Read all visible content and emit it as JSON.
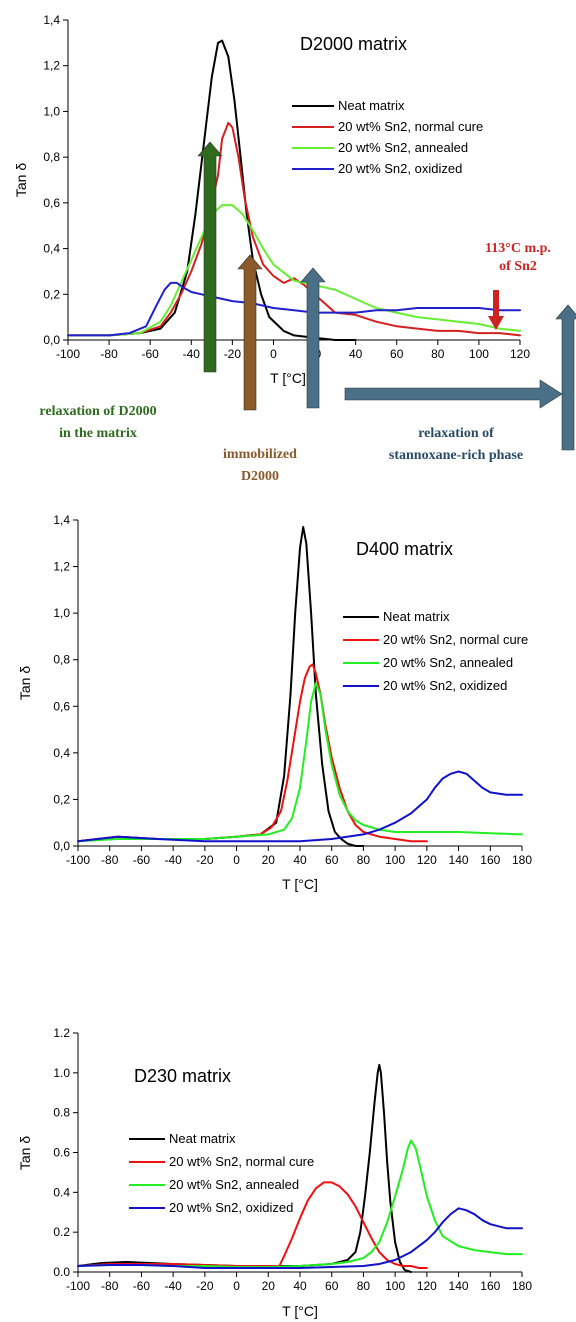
{
  "chart_data": [
    {
      "type": "line",
      "title": "D2000 matrix",
      "xlabel": "T [°C]",
      "ylabel": "Tan δ",
      "xlim": [
        -100,
        120
      ],
      "ylim": [
        0,
        1.4
      ],
      "xticks": [
        -100,
        -80,
        -60,
        -40,
        -20,
        0,
        20,
        40,
        60,
        80,
        100,
        120
      ],
      "yticks": [
        0,
        0.2,
        0.4,
        0.6,
        0.8,
        1.0,
        1.2,
        1.4
      ],
      "tick_labels_x": [
        "-100",
        "-80",
        "-60",
        "-40",
        "-20",
        "0",
        "20",
        "40",
        "60",
        "80",
        "100",
        "120"
      ],
      "tick_labels_y": [
        "0,0",
        "0,2",
        "0,4",
        "0,6",
        "0,8",
        "1,0",
        "1,2",
        "1,4"
      ],
      "legend_position": "center-right",
      "series": [
        {
          "name": "Neat matrix",
          "color": "#000000",
          "x": [
            -100,
            -80,
            -65,
            -55,
            -48,
            -42,
            -38,
            -34,
            -30,
            -27,
            -25,
            -22,
            -19,
            -16,
            -13,
            -10,
            -6,
            -2,
            5,
            10,
            20,
            30,
            40
          ],
          "y": [
            0.02,
            0.02,
            0.03,
            0.05,
            0.12,
            0.3,
            0.55,
            0.85,
            1.15,
            1.3,
            1.31,
            1.24,
            1.05,
            0.8,
            0.55,
            0.35,
            0.2,
            0.1,
            0.04,
            0.02,
            0.01,
            0.0,
            0.0
          ]
        },
        {
          "name": "20 wt% Sn2, normal cure",
          "color": "#d42020",
          "x": [
            -100,
            -80,
            -65,
            -55,
            -50,
            -45,
            -40,
            -35,
            -30,
            -27,
            -25,
            -22,
            -20,
            -17,
            -14,
            -10,
            -5,
            0,
            5,
            10,
            15,
            20,
            25,
            30,
            40,
            50,
            60,
            70,
            80,
            90,
            100,
            110,
            120
          ],
          "y": [
            0.02,
            0.02,
            0.03,
            0.06,
            0.12,
            0.2,
            0.3,
            0.42,
            0.6,
            0.72,
            0.88,
            0.95,
            0.93,
            0.8,
            0.62,
            0.45,
            0.33,
            0.28,
            0.25,
            0.27,
            0.24,
            0.2,
            0.16,
            0.12,
            0.11,
            0.08,
            0.06,
            0.05,
            0.04,
            0.04,
            0.03,
            0.03,
            0.02
          ]
        },
        {
          "name": "20 wt% Sn2, annealed",
          "color": "#66ee33",
          "x": [
            -100,
            -80,
            -65,
            -55,
            -50,
            -45,
            -40,
            -35,
            -30,
            -25,
            -20,
            -15,
            -10,
            -5,
            0,
            10,
            20,
            30,
            40,
            50,
            60,
            70,
            80,
            90,
            100,
            110,
            120
          ],
          "y": [
            0.02,
            0.02,
            0.03,
            0.08,
            0.15,
            0.25,
            0.35,
            0.45,
            0.55,
            0.59,
            0.59,
            0.55,
            0.48,
            0.4,
            0.33,
            0.26,
            0.24,
            0.22,
            0.18,
            0.14,
            0.12,
            0.1,
            0.09,
            0.08,
            0.07,
            0.05,
            0.04
          ]
        },
        {
          "name": "20 wt% Sn2, oxidized",
          "color": "#2020cc",
          "x": [
            -100,
            -80,
            -70,
            -62,
            -57,
            -53,
            -50,
            -47,
            -44,
            -40,
            -35,
            -30,
            -20,
            -10,
            0,
            10,
            20,
            30,
            40,
            50,
            60,
            70,
            80,
            90,
            100,
            110,
            120
          ],
          "y": [
            0.02,
            0.02,
            0.03,
            0.06,
            0.15,
            0.22,
            0.25,
            0.25,
            0.23,
            0.21,
            0.2,
            0.19,
            0.17,
            0.16,
            0.14,
            0.13,
            0.12,
            0.12,
            0.12,
            0.13,
            0.13,
            0.14,
            0.14,
            0.14,
            0.14,
            0.13,
            0.13
          ]
        }
      ],
      "annotations": {
        "melting_point": "113°C m.p.\nof Sn2",
        "relax_d2000": "relaxation of D2000\nin the matrix",
        "immobilized": "immobilized\nD2000",
        "relax_stannoxane": "relaxation of\nstannoxane-rich phase"
      },
      "annotation_colors": {
        "melting_point": "#cc2222",
        "relax_d2000": "#2e6b1f",
        "immobilized": "#8b5a2b",
        "relax_stannoxane": "#2a4a66"
      }
    },
    {
      "type": "line",
      "title": "D400 matrix",
      "xlabel": "T [°C]",
      "ylabel": "Tan δ",
      "xlim": [
        -100,
        180
      ],
      "ylim": [
        0,
        1.4
      ],
      "xticks": [
        -100,
        -80,
        -60,
        -40,
        -20,
        0,
        20,
        40,
        60,
        80,
        100,
        120,
        140,
        160,
        180
      ],
      "yticks": [
        0,
        0.2,
        0.4,
        0.6,
        0.8,
        1.0,
        1.2,
        1.4
      ],
      "tick_labels_x": [
        "-100",
        "-80",
        "-60",
        "-40",
        "-20",
        "0",
        "20",
        "40",
        "60",
        "80",
        "100",
        "120",
        "140",
        "160",
        "180"
      ],
      "tick_labels_y": [
        "0,0",
        "0,2",
        "0,4",
        "0,6",
        "0,8",
        "1,0",
        "1,2",
        "1,4"
      ],
      "legend_position": "center-right",
      "series": [
        {
          "name": "Neat matrix",
          "color": "#000000",
          "x": [
            -100,
            -75,
            -50,
            -20,
            0,
            15,
            25,
            30,
            34,
            37,
            40,
            42,
            44,
            47,
            50,
            54,
            58,
            62,
            66,
            70,
            75,
            80
          ],
          "y": [
            0.02,
            0.04,
            0.03,
            0.03,
            0.04,
            0.05,
            0.1,
            0.3,
            0.65,
            1.0,
            1.28,
            1.37,
            1.3,
            1.0,
            0.65,
            0.35,
            0.15,
            0.06,
            0.03,
            0.01,
            0.0,
            0.0
          ]
        },
        {
          "name": "20 wt% Sn2, normal cure",
          "color": "#ee1111",
          "x": [
            -100,
            -75,
            -50,
            -20,
            0,
            15,
            22,
            28,
            32,
            36,
            40,
            43,
            46,
            48,
            50,
            53,
            56,
            60,
            65,
            70,
            75,
            80,
            90,
            100,
            110,
            120
          ],
          "y": [
            0.02,
            0.04,
            0.03,
            0.03,
            0.04,
            0.05,
            0.08,
            0.15,
            0.28,
            0.45,
            0.62,
            0.72,
            0.77,
            0.78,
            0.74,
            0.65,
            0.52,
            0.38,
            0.25,
            0.15,
            0.09,
            0.06,
            0.04,
            0.03,
            0.02,
            0.02
          ]
        },
        {
          "name": "20 wt% Sn2, annealed",
          "color": "#22ee22",
          "x": [
            -100,
            -75,
            -50,
            -20,
            0,
            20,
            30,
            35,
            40,
            44,
            47,
            50,
            53,
            56,
            60,
            65,
            70,
            75,
            80,
            90,
            100,
            110,
            120,
            140,
            160,
            180
          ],
          "y": [
            0.02,
            0.03,
            0.03,
            0.03,
            0.04,
            0.05,
            0.07,
            0.12,
            0.25,
            0.45,
            0.62,
            0.7,
            0.65,
            0.5,
            0.35,
            0.22,
            0.15,
            0.11,
            0.09,
            0.07,
            0.06,
            0.06,
            0.06,
            0.06,
            0.055,
            0.05
          ]
        },
        {
          "name": "20 wt% Sn2, oxidized",
          "color": "#1111cc",
          "x": [
            -100,
            -75,
            -50,
            -20,
            0,
            20,
            40,
            60,
            80,
            90,
            100,
            110,
            120,
            125,
            130,
            135,
            140,
            145,
            150,
            155,
            160,
            170,
            180
          ],
          "y": [
            0.02,
            0.04,
            0.03,
            0.02,
            0.02,
            0.02,
            0.02,
            0.03,
            0.05,
            0.07,
            0.1,
            0.14,
            0.2,
            0.25,
            0.29,
            0.31,
            0.32,
            0.31,
            0.28,
            0.25,
            0.23,
            0.22,
            0.22
          ]
        }
      ]
    },
    {
      "type": "line",
      "title": "D230 matrix",
      "xlabel": "T [°C]",
      "ylabel": "Tan δ",
      "xlim": [
        -100,
        180
      ],
      "ylim": [
        0,
        1.2
      ],
      "xticks": [
        -100,
        -80,
        -60,
        -40,
        -20,
        0,
        20,
        40,
        60,
        80,
        100,
        120,
        140,
        160,
        180
      ],
      "yticks": [
        0,
        0.2,
        0.4,
        0.6,
        0.8,
        1.0,
        1.2
      ],
      "tick_labels_x": [
        "-100",
        "-80",
        "-60",
        "-40",
        "-20",
        "0",
        "20",
        "40",
        "60",
        "80",
        "100",
        "120",
        "140",
        "160",
        "180"
      ],
      "tick_labels_y": [
        "0.0",
        "0.2",
        "0.4",
        "0.6",
        "0.8",
        "1.0",
        "1.2"
      ],
      "legend_position": "upper-left",
      "series": [
        {
          "name": "Neat matrix",
          "color": "#000000",
          "x": [
            -100,
            -85,
            -70,
            -55,
            -40,
            -20,
            0,
            20,
            40,
            60,
            70,
            75,
            78,
            81,
            84,
            87,
            89,
            90,
            91,
            93,
            95,
            97,
            100,
            103,
            106,
            110
          ],
          "y": [
            0.03,
            0.045,
            0.05,
            0.045,
            0.04,
            0.035,
            0.03,
            0.03,
            0.03,
            0.04,
            0.06,
            0.1,
            0.2,
            0.38,
            0.6,
            0.85,
            1.0,
            1.04,
            1.0,
            0.8,
            0.55,
            0.35,
            0.15,
            0.05,
            0.01,
            0.0
          ]
        },
        {
          "name": "20 wt% Sn2, normal cure",
          "color": "#ee1111",
          "x": [
            -100,
            -80,
            -60,
            -40,
            -20,
            0,
            20,
            27,
            30,
            35,
            40,
            45,
            50,
            55,
            60,
            65,
            70,
            75,
            80,
            85,
            90,
            95,
            100,
            105,
            110,
            115,
            120
          ],
          "y": [
            0.03,
            0.04,
            0.04,
            0.04,
            0.035,
            0.03,
            0.03,
            0.03,
            0.08,
            0.17,
            0.27,
            0.36,
            0.42,
            0.45,
            0.45,
            0.43,
            0.39,
            0.33,
            0.25,
            0.17,
            0.1,
            0.06,
            0.04,
            0.03,
            0.03,
            0.02,
            0.02
          ]
        },
        {
          "name": "20 wt% Sn2, annealed",
          "color": "#22ee22",
          "x": [
            -100,
            -80,
            -60,
            -40,
            -20,
            0,
            20,
            40,
            60,
            70,
            80,
            85,
            90,
            95,
            100,
            105,
            108,
            110,
            113,
            116,
            120,
            125,
            130,
            140,
            150,
            160,
            170,
            180
          ],
          "y": [
            0.03,
            0.035,
            0.035,
            0.03,
            0.03,
            0.025,
            0.025,
            0.03,
            0.04,
            0.05,
            0.07,
            0.1,
            0.15,
            0.25,
            0.38,
            0.52,
            0.62,
            0.66,
            0.62,
            0.52,
            0.38,
            0.26,
            0.18,
            0.13,
            0.11,
            0.1,
            0.09,
            0.09
          ]
        },
        {
          "name": "20 wt% Sn2, oxidized",
          "color": "#1111cc",
          "x": [
            -100,
            -80,
            -60,
            -40,
            -20,
            0,
            20,
            40,
            60,
            80,
            90,
            100,
            110,
            120,
            125,
            130,
            135,
            140,
            145,
            150,
            155,
            160,
            170,
            180
          ],
          "y": [
            0.03,
            0.035,
            0.035,
            0.03,
            0.02,
            0.02,
            0.02,
            0.02,
            0.025,
            0.03,
            0.04,
            0.06,
            0.1,
            0.16,
            0.2,
            0.25,
            0.29,
            0.32,
            0.31,
            0.29,
            0.26,
            0.24,
            0.22,
            0.22
          ]
        }
      ]
    }
  ]
}
